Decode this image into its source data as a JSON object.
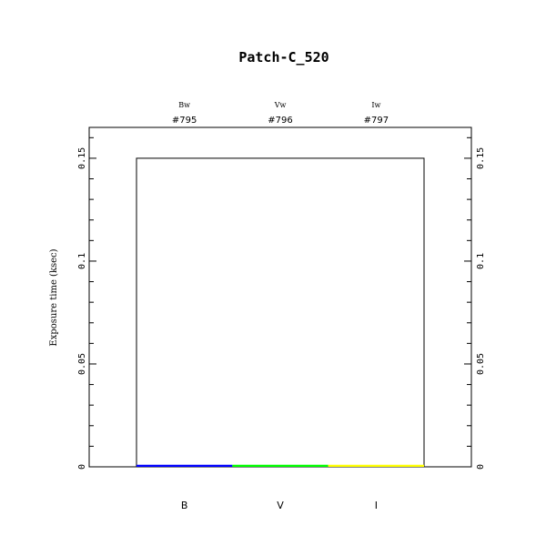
{
  "chart_data": {
    "type": "bar",
    "title": "Patch-C_520",
    "ylabel": "Exposure time (ksec)",
    "xlabel": "",
    "categories": [
      "B",
      "V",
      "I"
    ],
    "top_labels": [
      {
        "filter": "Bw",
        "id": "#795"
      },
      {
        "filter": "Vw",
        "id": "#796"
      },
      {
        "filter": "Iw",
        "id": "#797"
      }
    ],
    "values": [
      0.001,
      0.001,
      0.001
    ],
    "colors": [
      "#0000ff",
      "#00ff00",
      "#ffff00"
    ],
    "outline_value": 0.15,
    "ylim": [
      0,
      0.165
    ],
    "yticks": [
      0,
      0.05,
      0.1,
      0.15
    ],
    "ytick_labels": [
      "0",
      "0.05",
      "0.1",
      "0.15"
    ],
    "minor_tick_step": 0.01,
    "grid": false
  }
}
